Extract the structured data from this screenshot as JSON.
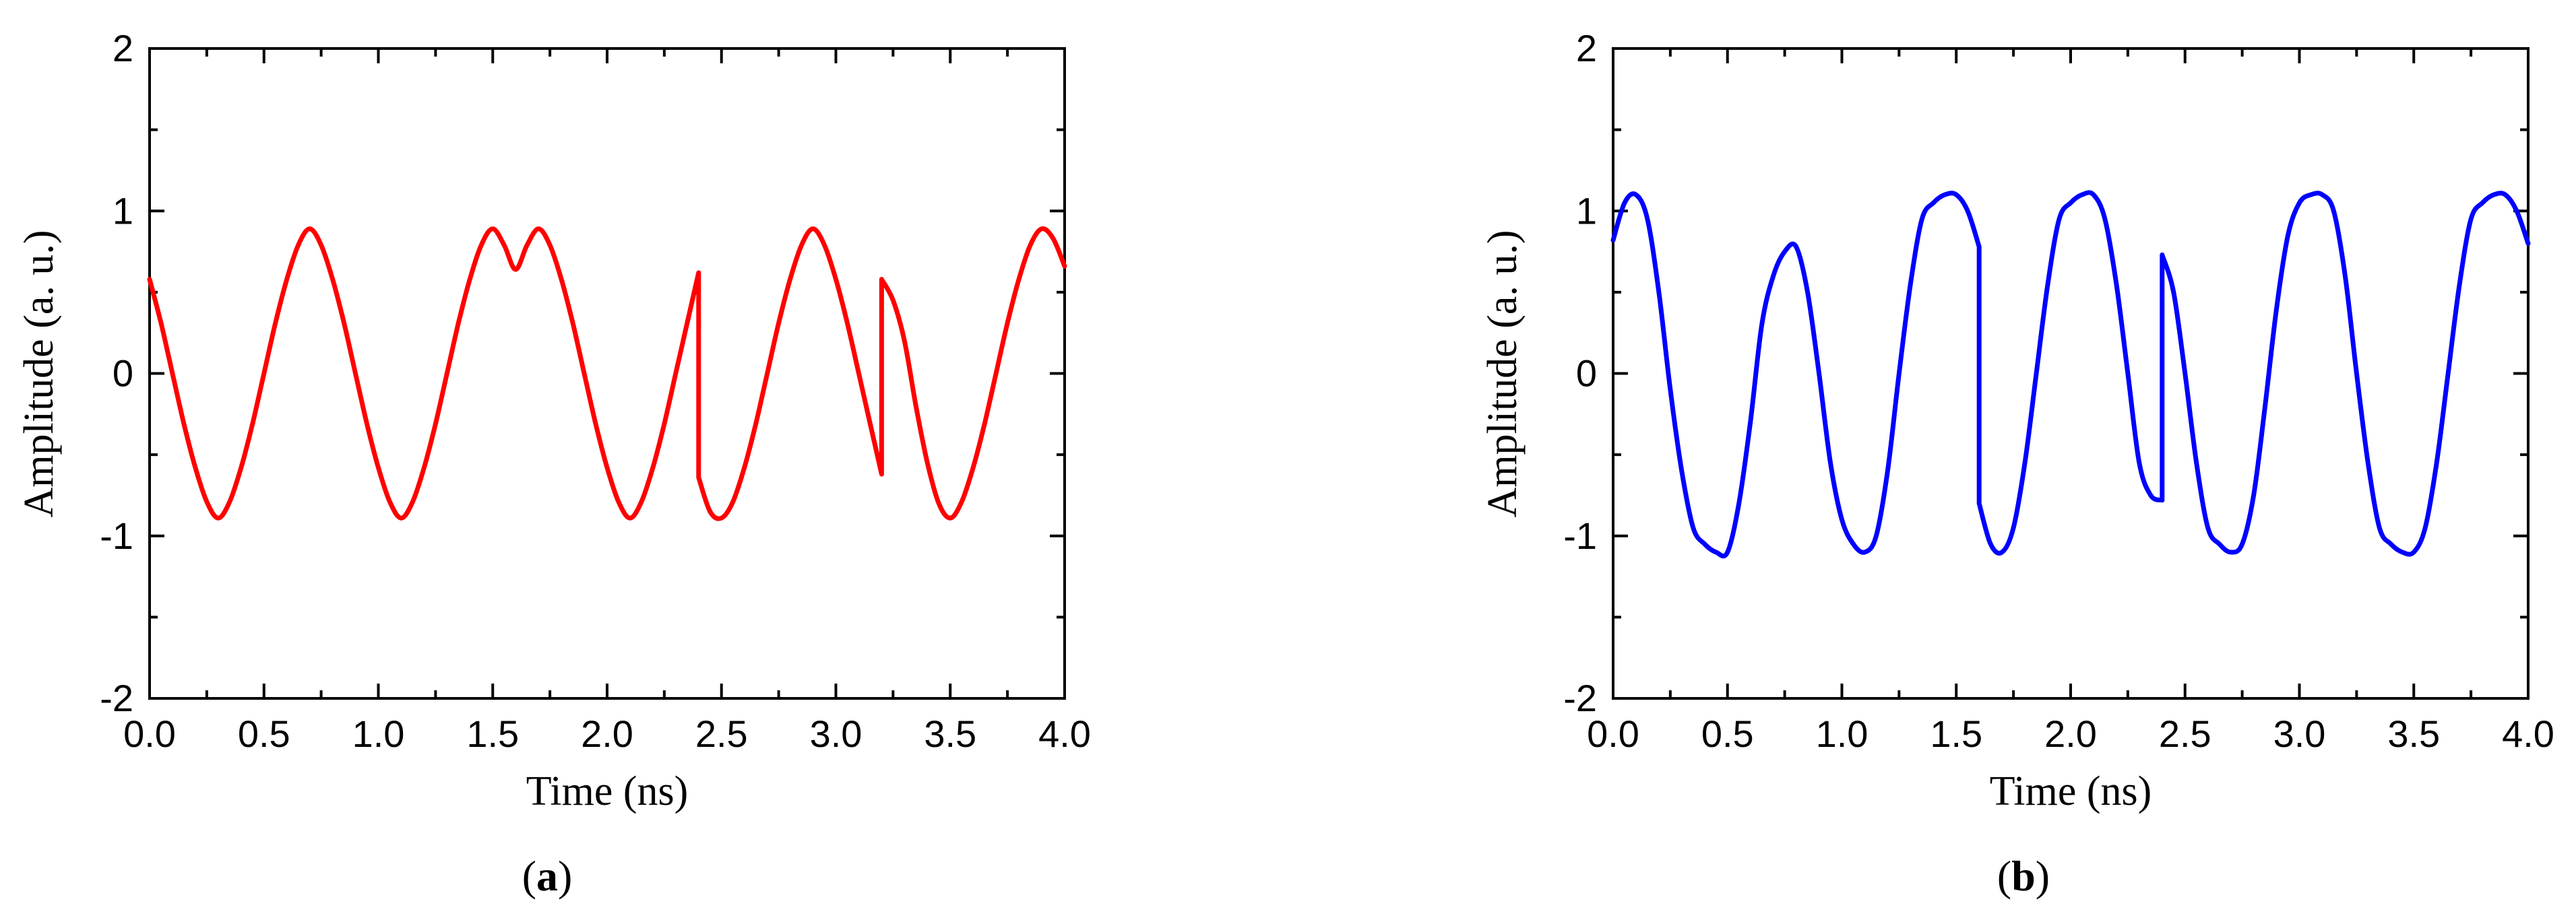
{
  "chart_data": [
    {
      "type": "line",
      "panel_label": "a",
      "xlabel": "Time (ns)",
      "ylabel": "Amplitude (a. u.)",
      "xlim": [
        0,
        4
      ],
      "ylim": [
        -2,
        2
      ],
      "xticks": [
        "0.0",
        "0.5",
        "1.0",
        "1.5",
        "2.0",
        "2.5",
        "3.0",
        "3.5",
        "4.0"
      ],
      "yticks": [
        "-2",
        "-1",
        "0",
        "1",
        "2"
      ],
      "grid": false,
      "color": "#ff0000",
      "series": [
        {
          "x": [
            0,
            0.05,
            0.1,
            0.15,
            0.2,
            0.25,
            0.3,
            0.35,
            0.4,
            0.45,
            0.5,
            0.55,
            0.6,
            0.65,
            0.7,
            0.75,
            0.8,
            0.85,
            0.9,
            0.95,
            1.0,
            1.05,
            1.1,
            1.15,
            1.2,
            1.25,
            1.3,
            1.35,
            1.4,
            1.45,
            1.5,
            1.55,
            1.6,
            1.65,
            1.7,
            1.75,
            1.8,
            1.85,
            1.9,
            1.95,
            2.0,
            2.05,
            2.1,
            2.15,
            2.2,
            2.25,
            2.3,
            2.35,
            2.4,
            2.4,
            2.45,
            2.5,
            2.55,
            2.6,
            2.65,
            2.7,
            2.75,
            2.8,
            2.85,
            2.9,
            2.95,
            3.0,
            3.05,
            3.1,
            3.15,
            3.2,
            3.2,
            3.25,
            3.3,
            3.35,
            3.4,
            3.45,
            3.5,
            3.55,
            3.6,
            3.65,
            3.7,
            3.75,
            3.8,
            3.85,
            3.9,
            3.95,
            4.0
          ],
          "y": [
            0.58,
            0.31,
            0.0,
            -0.31,
            -0.58,
            -0.79,
            -0.89,
            -0.79,
            -0.58,
            -0.31,
            0.0,
            0.31,
            0.58,
            0.79,
            0.89,
            0.79,
            0.58,
            0.31,
            0.0,
            -0.31,
            -0.58,
            -0.79,
            -0.89,
            -0.79,
            -0.58,
            -0.31,
            0.0,
            0.31,
            0.58,
            0.79,
            0.89,
            0.79,
            0.64,
            0.79,
            0.89,
            0.79,
            0.58,
            0.31,
            0.0,
            -0.31,
            -0.58,
            -0.79,
            -0.89,
            -0.79,
            -0.58,
            -0.31,
            0.0,
            0.31,
            0.62,
            -0.64,
            -0.85,
            -0.89,
            -0.79,
            -0.58,
            -0.31,
            0.0,
            0.31,
            0.58,
            0.79,
            0.89,
            0.79,
            0.58,
            0.31,
            0.0,
            -0.31,
            -0.62,
            0.58,
            0.45,
            0.2,
            -0.2,
            -0.55,
            -0.8,
            -0.89,
            -0.79,
            -0.58,
            -0.31,
            0.0,
            0.31,
            0.58,
            0.79,
            0.89,
            0.83,
            0.66
          ]
        }
      ]
    },
    {
      "type": "line",
      "panel_label": "b",
      "xlabel": "Time (ns)",
      "ylabel": "Amplitude (a. u.)",
      "xlim": [
        0,
        4
      ],
      "ylim": [
        -2,
        2
      ],
      "xticks": [
        "0.0",
        "0.5",
        "1.0",
        "1.5",
        "2.0",
        "2.5",
        "3.0",
        "3.5",
        "4.0"
      ],
      "yticks": [
        "-2",
        "-1",
        "0",
        "1",
        "2"
      ],
      "grid": false,
      "color": "#0000ff",
      "series": [
        {
          "x": [
            0,
            0.05,
            0.1,
            0.15,
            0.2,
            0.25,
            0.3,
            0.35,
            0.4,
            0.45,
            0.5,
            0.55,
            0.6,
            0.65,
            0.7,
            0.75,
            0.8,
            0.85,
            0.9,
            0.95,
            1.0,
            1.05,
            1.1,
            1.15,
            1.2,
            1.25,
            1.3,
            1.35,
            1.4,
            1.45,
            1.5,
            1.55,
            1.6,
            1.6,
            1.65,
            1.7,
            1.75,
            1.8,
            1.85,
            1.9,
            1.95,
            2.0,
            2.05,
            2.1,
            2.15,
            2.2,
            2.25,
            2.3,
            2.35,
            2.4,
            2.4,
            2.45,
            2.5,
            2.55,
            2.6,
            2.65,
            2.7,
            2.75,
            2.8,
            2.85,
            2.9,
            2.95,
            3.0,
            3.05,
            3.1,
            3.15,
            3.2,
            3.25,
            3.3,
            3.35,
            3.4,
            3.45,
            3.5,
            3.55,
            3.6,
            3.65,
            3.7,
            3.75,
            3.8,
            3.85,
            3.9,
            3.95,
            4.0
          ],
          "y": [
            0.82,
            1.05,
            1.1,
            0.95,
            0.5,
            -0.1,
            -0.6,
            -0.95,
            -1.05,
            -1.1,
            -1.1,
            -0.8,
            -0.3,
            0.3,
            0.6,
            0.75,
            0.78,
            0.5,
            0.0,
            -0.55,
            -0.9,
            -1.05,
            -1.1,
            -1.0,
            -0.6,
            0.0,
            0.55,
            0.95,
            1.05,
            1.1,
            1.1,
            1.0,
            0.78,
            -0.8,
            -1.05,
            -1.1,
            -0.95,
            -0.55,
            0.0,
            0.55,
            0.95,
            1.05,
            1.1,
            1.1,
            0.95,
            0.55,
            0.0,
            -0.55,
            -0.75,
            -0.78,
            0.73,
            0.5,
            0.0,
            -0.55,
            -0.95,
            -1.05,
            -1.1,
            -1.05,
            -0.75,
            -0.2,
            0.4,
            0.85,
            1.05,
            1.1,
            1.1,
            1.0,
            0.6,
            0.0,
            -0.55,
            -0.95,
            -1.05,
            -1.1,
            -1.1,
            -0.95,
            -0.55,
            0.0,
            0.55,
            0.95,
            1.05,
            1.1,
            1.1,
            1.0,
            0.8
          ]
        }
      ]
    }
  ]
}
